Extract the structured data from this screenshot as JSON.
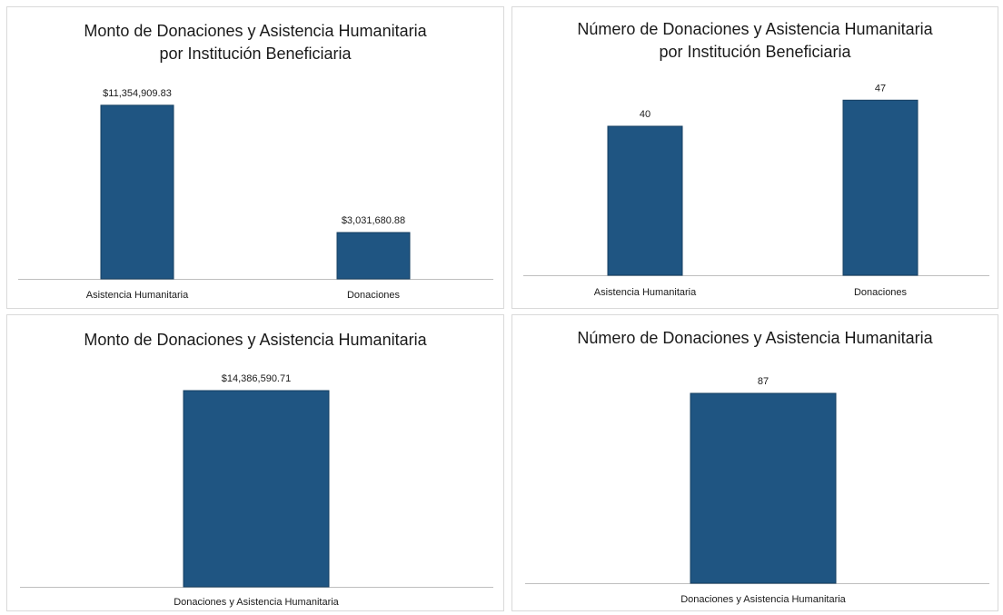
{
  "colors": {
    "bar": "#1f5582",
    "axis": "#bfbfbf",
    "text": "#1a1a1a"
  },
  "chart_data": [
    {
      "type": "bar",
      "title_lines": [
        "Monto de Donaciones y Asistencia Humanitaria",
        "por Institución Beneficiaria"
      ],
      "categories": [
        "Asistencia Humanitaria",
        "Donaciones"
      ],
      "values": [
        11354909.83,
        3031680.88
      ],
      "data_labels": [
        "$11,354,909.83",
        "$3,031,680.88"
      ],
      "ylim": [
        0,
        12000000
      ],
      "grid": false,
      "legend": "none"
    },
    {
      "type": "bar",
      "title_lines": [
        "Número de Donaciones y Asistencia Humanitaria",
        "por Institución Beneficiaria"
      ],
      "categories": [
        "Asistencia Humanitaria",
        "Donaciones"
      ],
      "values": [
        40,
        47
      ],
      "data_labels": [
        "40",
        "47"
      ],
      "ylim": [
        0,
        47.8
      ],
      "grid": false,
      "legend": "none"
    },
    {
      "type": "bar",
      "title_lines": [
        "Monto de Donaciones y Asistencia Humanitaria"
      ],
      "categories": [
        "Donaciones y Asistencia Humanitaria"
      ],
      "values": [
        14386590.71
      ],
      "data_labels": [
        "$14,386,590.71"
      ],
      "ylim": [
        0,
        14386590.71
      ],
      "grid": false,
      "legend": "none"
    },
    {
      "type": "bar",
      "title_lines": [
        "Número de Donaciones y Asistencia Humanitaria"
      ],
      "categories": [
        "Donaciones y Asistencia Humanitaria"
      ],
      "values": [
        87
      ],
      "data_labels": [
        "87"
      ],
      "ylim": [
        0,
        87
      ],
      "grid": false,
      "legend": "none"
    }
  ]
}
